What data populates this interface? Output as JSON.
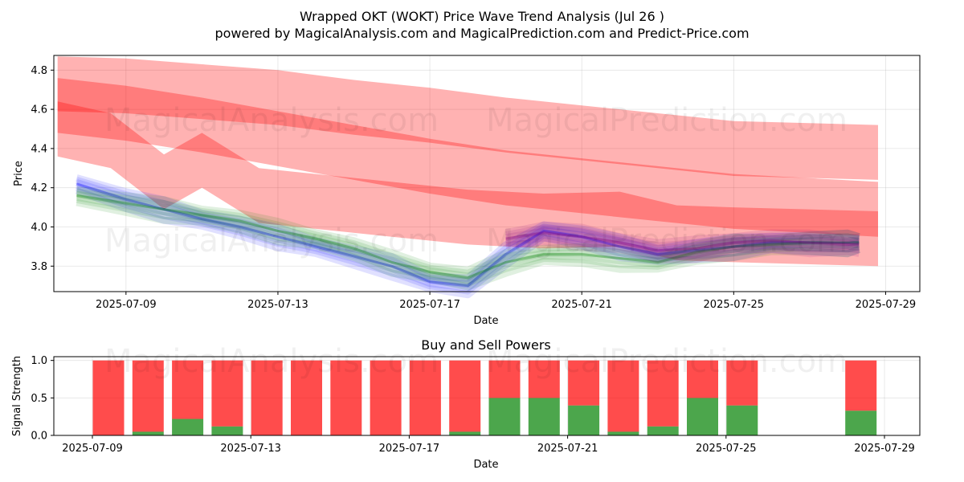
{
  "title_line1": "Wrapped OKT (WOKT) Price Wave Trend Analysis (Jul 26 )",
  "title_line2": "powered by MagicalAnalysis.com and MagicalPrediction.com and Predict-Price.com",
  "watermarks": [
    "MagicalAnalysis.com",
    "MagicalPrediction.com"
  ],
  "colors": {
    "band": "#ff0000",
    "buy": "#008000",
    "sell": "#ff0000",
    "blue": "#0000ff",
    "green": "#008000",
    "purple": "#800080"
  },
  "chart_data": [
    {
      "type": "area",
      "xlabel": "Date",
      "ylabel": "Price",
      "xlim_days": [
        -1.9,
        20.9
      ],
      "ylim": [
        3.67,
        4.875
      ],
      "grid": true,
      "x_ticks": [
        "2025-07-09",
        "2025-07-13",
        "2025-07-17",
        "2025-07-21",
        "2025-07-25",
        "2025-07-29"
      ],
      "y_ticks": [
        3.8,
        4.0,
        4.2,
        4.4,
        4.6,
        4.8
      ],
      "bands": [
        {
          "name": "upper band",
          "x": [
            -1.8,
            0,
            2,
            4,
            6,
            8,
            10,
            12,
            14,
            16,
            19.8
          ],
          "center": [
            4.73,
            4.72,
            4.69,
            4.66,
            4.61,
            4.57,
            4.52,
            4.48,
            4.44,
            4.4,
            4.38
          ],
          "width": 0.28
        },
        {
          "name": "middle band",
          "x": [
            -1.8,
            -0.4,
            1.0,
            2.0,
            3.5,
            5,
            7,
            9,
            11,
            13,
            14.5,
            16,
            19.8
          ],
          "center": [
            4.5,
            4.44,
            4.23,
            4.34,
            4.16,
            4.13,
            4.09,
            4.05,
            4.03,
            4.04,
            3.97,
            3.96,
            3.94
          ],
          "width": 0.28
        },
        {
          "name": "lower band",
          "x": [
            -1.8,
            0,
            2,
            4,
            6,
            8,
            10,
            12,
            14,
            16,
            19.8
          ],
          "center": [
            4.62,
            4.58,
            4.52,
            4.45,
            4.38,
            4.31,
            4.25,
            4.21,
            4.17,
            4.13,
            4.09
          ],
          "width": 0.28
        }
      ],
      "series": [
        {
          "name": "blue",
          "x": [
            -1.3,
            0,
            1,
            2,
            3,
            4,
            5,
            6,
            7,
            8,
            9,
            10,
            11,
            12,
            13,
            14,
            15,
            16,
            17,
            18,
            19,
            19.3
          ],
          "values": [
            4.22,
            4.14,
            4.09,
            4.04,
            4.0,
            3.95,
            3.9,
            3.85,
            3.8,
            3.72,
            3.7,
            3.86,
            3.98,
            3.95,
            3.9,
            3.86,
            3.88,
            3.9,
            3.92,
            3.92,
            3.92,
            3.92
          ]
        },
        {
          "name": "green",
          "x": [
            -1.3,
            0,
            1,
            2,
            3,
            4,
            5,
            6,
            7,
            8,
            9,
            10,
            11,
            12,
            13,
            14,
            15,
            16,
            17,
            18,
            19,
            19.3
          ],
          "values": [
            4.16,
            4.12,
            4.09,
            4.06,
            4.03,
            3.98,
            3.94,
            3.89,
            3.82,
            3.77,
            3.74,
            3.82,
            3.86,
            3.86,
            3.84,
            3.82,
            3.87,
            3.9,
            3.91,
            3.92,
            3.92,
            3.92
          ]
        },
        {
          "name": "purple",
          "x": [
            10,
            11,
            12,
            13,
            14,
            15,
            16,
            17,
            18,
            19,
            19.3
          ],
          "values": [
            3.94,
            3.97,
            3.95,
            3.92,
            3.88,
            3.89,
            3.92,
            3.93,
            3.92,
            3.91,
            3.91
          ]
        }
      ]
    },
    {
      "type": "bar",
      "title": "Buy and Sell Powers",
      "xlabel": "Date",
      "ylabel": "Signal Strength",
      "ylim": [
        0,
        1.05
      ],
      "grid": true,
      "x_ticks": [
        "2025-07-09",
        "2025-07-13",
        "2025-07-17",
        "2025-07-21",
        "2025-07-25",
        "2025-07-29"
      ],
      "y_ticks": [
        "0.0",
        "0.5",
        "1.0"
      ],
      "dates_day_offset": [
        0,
        1,
        2,
        3,
        4,
        5,
        6,
        7,
        8,
        9,
        10,
        11,
        12,
        13,
        14,
        15,
        16,
        19
      ],
      "buy": [
        0.0,
        0.05,
        0.22,
        0.12,
        0.0,
        0.0,
        0.0,
        0.0,
        0.0,
        0.05,
        0.5,
        0.5,
        0.4,
        0.05,
        0.12,
        0.5,
        0.4,
        0.33
      ],
      "sell": [
        1.0,
        0.95,
        0.78,
        0.88,
        1.0,
        1.0,
        1.0,
        1.0,
        1.0,
        0.95,
        0.5,
        0.5,
        0.6,
        0.95,
        0.88,
        0.5,
        0.6,
        0.67
      ]
    }
  ]
}
